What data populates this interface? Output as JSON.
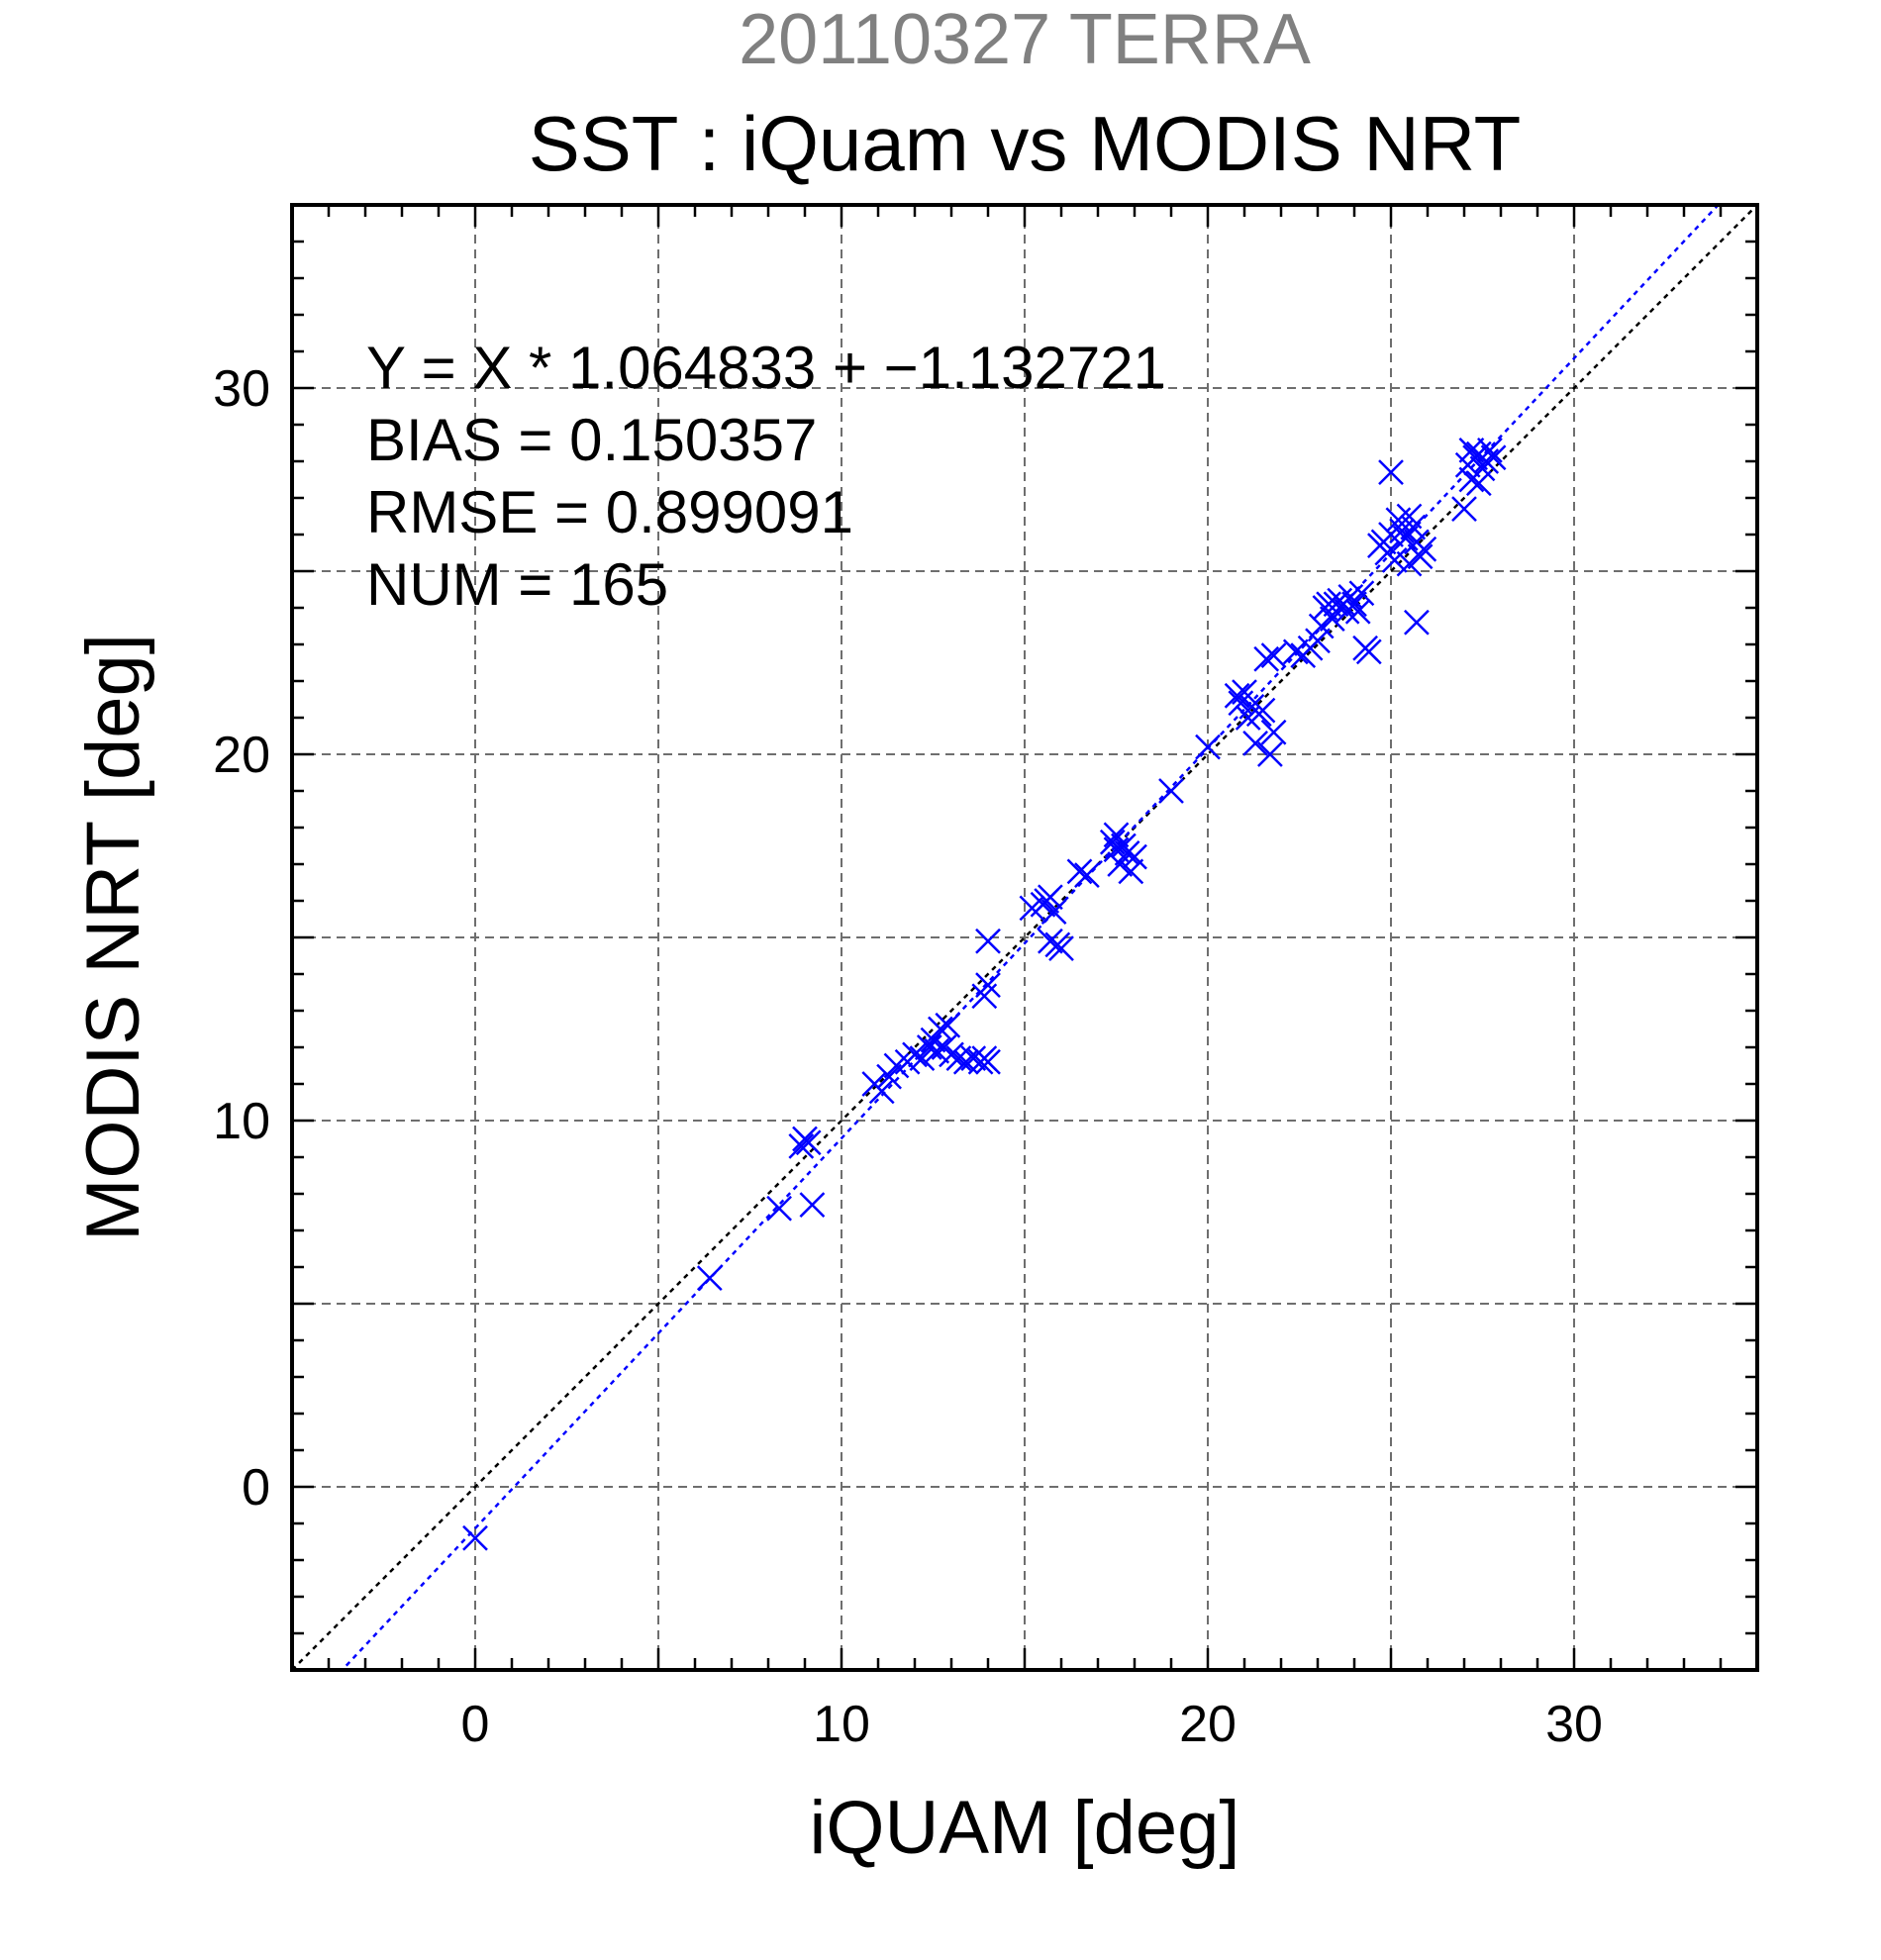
{
  "chart_data": {
    "type": "scatter",
    "supertitle": "20110327 TERRA",
    "title": "SST : iQuam vs MODIS NRT",
    "xlabel": "iQUAM [deg]",
    "ylabel": "MODIS NRT [deg]",
    "xlim": [
      -5,
      35
    ],
    "ylim": [
      -5,
      35
    ],
    "x_ticks": [
      0,
      10,
      20,
      30
    ],
    "y_ticks": [
      0,
      10,
      20,
      30
    ],
    "grid": true,
    "colors": {
      "points": "#0000ff",
      "fit_line": "#0000ff",
      "identity_line": "#000000",
      "supertitle": "#808080"
    },
    "marker": "x",
    "stats": {
      "equation": "Y = X * 1.064833 + −1.132721",
      "bias": "BIAS = 0.150357",
      "rmse": "RMSE = 0.899091",
      "num": "NUM = 165"
    },
    "fit": {
      "slope": 1.064833,
      "intercept": -1.132721
    },
    "identity": {
      "slope": 1,
      "intercept": 0
    },
    "points": [
      [
        0.0,
        -1.4
      ],
      [
        6.4,
        5.7
      ],
      [
        8.3,
        7.6
      ],
      [
        8.9,
        9.3
      ],
      [
        9.0,
        9.5
      ],
      [
        9.1,
        9.4
      ],
      [
        9.2,
        7.7
      ],
      [
        10.9,
        11.0
      ],
      [
        11.1,
        10.8
      ],
      [
        11.3,
        11.2
      ],
      [
        11.5,
        11.5
      ],
      [
        11.8,
        11.6
      ],
      [
        12.0,
        11.8
      ],
      [
        12.2,
        11.7
      ],
      [
        12.4,
        12.0
      ],
      [
        12.5,
        12.2
      ],
      [
        12.6,
        11.9
      ],
      [
        12.7,
        12.5
      ],
      [
        12.8,
        12.0
      ],
      [
        12.9,
        12.6
      ],
      [
        13.0,
        11.8
      ],
      [
        13.2,
        11.7
      ],
      [
        13.4,
        11.6
      ],
      [
        13.6,
        11.7
      ],
      [
        13.8,
        11.6
      ],
      [
        13.9,
        11.7
      ],
      [
        14.0,
        11.6
      ],
      [
        13.9,
        13.4
      ],
      [
        14.0,
        13.7
      ],
      [
        14.0,
        14.9
      ],
      [
        15.2,
        15.8
      ],
      [
        15.5,
        15.9
      ],
      [
        15.6,
        16.0
      ],
      [
        15.7,
        16.1
      ],
      [
        15.8,
        15.7
      ],
      [
        15.9,
        14.8
      ],
      [
        15.7,
        14.9
      ],
      [
        16.0,
        14.7
      ],
      [
        16.5,
        16.8
      ],
      [
        16.7,
        16.7
      ],
      [
        17.4,
        17.6
      ],
      [
        17.5,
        17.8
      ],
      [
        17.6,
        17.0
      ],
      [
        17.7,
        17.5
      ],
      [
        17.8,
        17.3
      ],
      [
        17.9,
        16.8
      ],
      [
        18.0,
        17.2
      ],
      [
        17.5,
        17.4
      ],
      [
        19.0,
        19.0
      ],
      [
        20.0,
        20.2
      ],
      [
        20.8,
        21.6
      ],
      [
        20.9,
        21.4
      ],
      [
        21.0,
        21.7
      ],
      [
        21.1,
        21.0
      ],
      [
        21.2,
        21.3
      ],
      [
        21.3,
        20.3
      ],
      [
        21.4,
        21.1
      ],
      [
        21.5,
        21.2
      ],
      [
        21.7,
        20.0
      ],
      [
        21.8,
        20.6
      ],
      [
        21.6,
        22.6
      ],
      [
        21.8,
        22.7
      ],
      [
        22.4,
        22.8
      ],
      [
        22.6,
        22.7
      ],
      [
        22.8,
        22.9
      ],
      [
        23.0,
        23.1
      ],
      [
        23.1,
        23.5
      ],
      [
        23.2,
        24.0
      ],
      [
        23.3,
        24.1
      ],
      [
        23.4,
        23.7
      ],
      [
        23.5,
        24.1
      ],
      [
        23.6,
        24.2
      ],
      [
        23.7,
        24.1
      ],
      [
        23.8,
        23.9
      ],
      [
        23.9,
        24.3
      ],
      [
        24.0,
        24.1
      ],
      [
        24.1,
        23.9
      ],
      [
        24.2,
        24.4
      ],
      [
        24.3,
        22.9
      ],
      [
        24.4,
        22.8
      ],
      [
        24.7,
        25.7
      ],
      [
        24.8,
        25.8
      ],
      [
        24.9,
        25.5
      ],
      [
        25.0,
        26.0
      ],
      [
        25.1,
        25.3
      ],
      [
        25.0,
        27.7
      ],
      [
        25.2,
        26.4
      ],
      [
        25.3,
        26.1
      ],
      [
        25.4,
        25.9
      ],
      [
        25.5,
        26.5
      ],
      [
        25.5,
        25.2
      ],
      [
        25.6,
        26.2
      ],
      [
        25.7,
        25.8
      ],
      [
        25.8,
        25.4
      ],
      [
        25.9,
        25.6
      ],
      [
        25.7,
        23.6
      ],
      [
        27.0,
        26.7
      ],
      [
        27.1,
        27.9
      ],
      [
        27.2,
        28.3
      ],
      [
        27.2,
        27.5
      ],
      [
        27.3,
        28.1
      ],
      [
        27.4,
        27.4
      ],
      [
        27.4,
        28.2
      ],
      [
        27.5,
        27.8
      ],
      [
        27.6,
        28.0
      ],
      [
        27.7,
        28.3
      ],
      [
        27.8,
        28.1
      ]
    ]
  }
}
